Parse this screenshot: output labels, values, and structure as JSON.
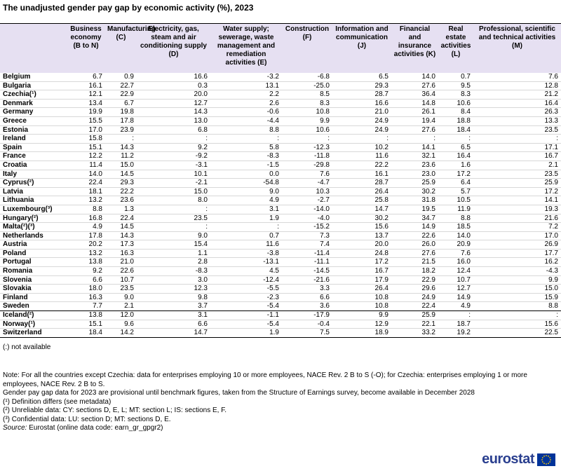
{
  "title": "The unadjusted gender pay gap by economic activity (%), 2023",
  "table": {
    "header": [
      "",
      "Business economy (B to N)",
      "Manufacturing (C)",
      "Electricity, gas, steam and air conditioning supply (D)",
      "Water supply; sewerage, waste management and remediation activities (E)",
      "Construction (F)",
      "Information and communication (J)",
      "Financial and insurance activities (K)",
      "Real estate activities (L)",
      "Professional, scientific and technical activities (M)"
    ],
    "rows": [
      [
        "Belgium",
        "6.7",
        "0.9",
        "16.6",
        "-3.2",
        "-6.8",
        "6.5",
        "14.0",
        "0.7",
        "7.6"
      ],
      [
        "Bulgaria",
        "16.1",
        "22.7",
        "0.3",
        "13.1",
        "-25.0",
        "29.3",
        "27.6",
        "9.5",
        "12.8"
      ],
      [
        "Czechia(¹)",
        "12.1",
        "22.9",
        "20.0",
        "2.2",
        "8.5",
        "28.7",
        "36.4",
        "8.3",
        "21.2"
      ],
      [
        "Denmark",
        "13.4",
        "6.7",
        "12.7",
        "2.6",
        "8.3",
        "16.6",
        "14.8",
        "10.6",
        "16.4"
      ],
      [
        "Germany",
        "19.9",
        "19.8",
        "14.3",
        "-0.6",
        "10.8",
        "21.0",
        "26.1",
        "8.4",
        "26.3"
      ],
      [
        "Greece",
        "15.5",
        "17.8",
        "13.0",
        "-4.4",
        "9.9",
        "24.9",
        "19.4",
        "18.8",
        "13.3"
      ],
      [
        "Estonia",
        "17.0",
        "23.9",
        "6.8",
        "8.8",
        "10.6",
        "24.9",
        "27.6",
        "18.4",
        "23.5"
      ],
      [
        "Ireland",
        "15.8",
        ":",
        ":",
        ":",
        ":",
        ":",
        ":",
        ":",
        ":"
      ],
      [
        "Spain",
        "15.1",
        "14.3",
        "9.2",
        "5.8",
        "-12.3",
        "10.2",
        "14.1",
        "6.5",
        "17.1"
      ],
      [
        "France",
        "12.2",
        "11.2",
        "-9.2",
        "-8.3",
        "-11.8",
        "11.6",
        "32.1",
        "16.4",
        "16.7"
      ],
      [
        "Croatia",
        "11.4",
        "15.0",
        "-3.1",
        "-1.5",
        "-29.8",
        "22.2",
        "23.6",
        "1.6",
        "2.1"
      ],
      [
        "Italy",
        "14.0",
        "14.5",
        "10.1",
        "0.0",
        "7.6",
        "16.1",
        "23.0",
        "17.2",
        "23.5"
      ],
      [
        "Cyprus(²)",
        "22.4",
        "29.3",
        "-2.1",
        "-54.8",
        "-4.7",
        "28.7",
        "25.9",
        "6.4",
        "25.9"
      ],
      [
        "Latvia",
        "18.1",
        "22.2",
        "15.0",
        "9.0",
        "10.3",
        "26.4",
        "30.2",
        "5.7",
        "17.2"
      ],
      [
        "Lithuania",
        "13.2",
        "23.6",
        "8.0",
        "4.9",
        "-2.7",
        "25.8",
        "31.8",
        "10.5",
        "14.1"
      ],
      [
        "Luxembourg(³)",
        "8.8",
        "1.3",
        ":",
        "3.1",
        "-14.0",
        "14.7",
        "19.5",
        "11.9",
        "19.3"
      ],
      [
        "Hungary(²)",
        "16.8",
        "22.4",
        "23.5",
        "1.9",
        "-4.0",
        "30.2",
        "34.7",
        "8.8",
        "21.6"
      ],
      [
        "Malta(²)(³)",
        "4.9",
        "14.5",
        ":",
        ":",
        "-15.2",
        "15.6",
        "14.9",
        "18.5",
        "7.2"
      ],
      [
        "Netherlands",
        "17.8",
        "14.3",
        "9.0",
        "0.7",
        "7.3",
        "13.7",
        "22.6",
        "14.0",
        "17.0"
      ],
      [
        "Austria",
        "20.2",
        "17.3",
        "15.4",
        "11.6",
        "7.4",
        "20.0",
        "26.0",
        "20.9",
        "26.9"
      ],
      [
        "Poland",
        "13.2",
        "16.3",
        "1.1",
        "-3.8",
        "-11.4",
        "24.8",
        "27.6",
        "7.6",
        "17.7"
      ],
      [
        "Portugal",
        "13.8",
        "21.0",
        "2.8",
        "-13.1",
        "-11.1",
        "17.2",
        "21.5",
        "16.0",
        "16.2"
      ],
      [
        "Romania",
        "9.2",
        "22.6",
        "-8.3",
        "4.5",
        "-14.5",
        "16.7",
        "18.2",
        "12.4",
        "-4.3"
      ],
      [
        "Slovenia",
        "6.6",
        "10.7",
        "3.0",
        "-12.4",
        "-21.6",
        "17.9",
        "22.9",
        "10.7",
        "9.9"
      ],
      [
        "Slovakia",
        "18.0",
        "23.5",
        "12.3",
        "-5.5",
        "3.3",
        "26.4",
        "29.6",
        "12.7",
        "15.0"
      ],
      [
        "Finland",
        "16.3",
        "9.0",
        "9.8",
        "-2.3",
        "6.6",
        "10.8",
        "24.9",
        "14.9",
        "15.9"
      ],
      [
        "Sweden",
        "7.7",
        "2.1",
        "3.7",
        "-5.4",
        "3.6",
        "10.8",
        "22.4",
        "4.9",
        "8.8"
      ],
      [
        "Iceland(²)",
        "13.8",
        "12.0",
        "3.1",
        "-1.1",
        "-17.9",
        "9.9",
        "25.9",
        ":",
        ":"
      ],
      [
        "Norway(¹)",
        "15.1",
        "9.6",
        "6.6",
        "-5.4",
        "-0.4",
        "12.9",
        "22.1",
        "18.7",
        "15.6"
      ],
      [
        "Switzerland",
        "18.4",
        "14.2",
        "14.7",
        "1.9",
        "7.5",
        "18.9",
        "33.2",
        "19.2",
        "22.5"
      ]
    ]
  },
  "legend": "(:) not available",
  "notes": [
    "Note: For all the countries except Czechia: data for enterprises employing 10 or more employees, NACE Rev. 2 B to S (-O); for Czechia: enterprises employing 1 or more employees, NACE Rev. 2 B to S.",
    "Gender pay gap data for 2023 are provisional until benchmark figures, taken from the Structure of Earnings survey, become available in December 2028",
    "(¹) Definition differs (see metadata)",
    "(²) Unreliable data: CY: sections D, E, L; MT: section L; IS: sections E, F.",
    "(³) Confidential data: LU: section D; MT: sections D, E."
  ],
  "source": {
    "label": "Source:",
    "text": "Eurostat (online data code: earn_gr_gpgr2)"
  },
  "logo": "eurostat"
}
